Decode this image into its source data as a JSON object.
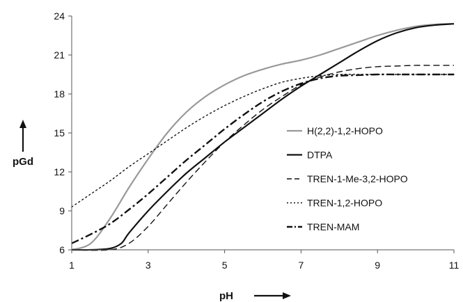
{
  "chart_data": {
    "type": "line",
    "title": "",
    "xlabel": "pH",
    "ylabel": "pGd",
    "xlim": [
      1,
      11
    ],
    "ylim": [
      6,
      24
    ],
    "xticks": [
      1,
      3,
      5,
      7,
      9,
      11
    ],
    "yticks": [
      6,
      9,
      12,
      15,
      18,
      21,
      24
    ],
    "legend_position": "right",
    "grid": false,
    "series": [
      {
        "name": "H(2,2)-1,2-HOPO",
        "color": "#999999",
        "style": "solid",
        "x": [
          1,
          1.5,
          2,
          2.5,
          3,
          3.5,
          4,
          4.5,
          5,
          5.5,
          6,
          6.5,
          7,
          7.5,
          8,
          8.5,
          9,
          9.5,
          10,
          10.5,
          11
        ],
        "y": [
          6.0,
          6.5,
          8.4,
          10.8,
          13.0,
          15.0,
          16.6,
          17.8,
          18.7,
          19.4,
          19.9,
          20.3,
          20.6,
          21.0,
          21.5,
          22.0,
          22.5,
          22.9,
          23.2,
          23.35,
          23.4
        ]
      },
      {
        "name": "DTPA",
        "color": "#111111",
        "style": "solid",
        "x": [
          1,
          1.5,
          2,
          2.3,
          2.5,
          3,
          3.5,
          4,
          4.5,
          5,
          5.5,
          6,
          6.5,
          7,
          7.5,
          8,
          8.5,
          9,
          9.5,
          10,
          10.5,
          11
        ],
        "y": [
          6.0,
          6.0,
          6.1,
          6.5,
          7.3,
          9.0,
          10.5,
          11.9,
          13.1,
          14.3,
          15.4,
          16.5,
          17.6,
          18.6,
          19.5,
          20.4,
          21.3,
          22.1,
          22.7,
          23.1,
          23.3,
          23.4
        ]
      },
      {
        "name": "TREN-1-Me-3,2-HOPO",
        "color": "#111111",
        "style": "dashed",
        "x": [
          1,
          2,
          2.5,
          3,
          3.5,
          4,
          4.5,
          5,
          5.5,
          6,
          6.5,
          7,
          7.5,
          8,
          8.5,
          9,
          9.5,
          10,
          10.5,
          11
        ],
        "y": [
          6.0,
          6.0,
          6.5,
          7.8,
          9.5,
          11.2,
          12.8,
          14.3,
          15.6,
          16.8,
          17.8,
          18.7,
          19.3,
          19.7,
          19.95,
          20.1,
          20.15,
          20.2,
          20.2,
          20.2
        ]
      },
      {
        "name": "TREN-1,2-HOPO",
        "color": "#111111",
        "style": "dotted",
        "x": [
          1,
          1.5,
          2,
          2.5,
          3,
          3.5,
          4,
          4.5,
          5,
          5.5,
          6,
          6.5,
          7,
          7.5,
          8,
          8.5,
          9,
          9.5,
          10,
          10.5,
          11
        ],
        "y": [
          9.3,
          10.3,
          11.3,
          12.4,
          13.4,
          14.4,
          15.4,
          16.3,
          17.1,
          17.8,
          18.4,
          18.9,
          19.2,
          19.4,
          19.5,
          19.5,
          19.5,
          19.5,
          19.5,
          19.5,
          19.5
        ]
      },
      {
        "name": "TREN-MAM",
        "color": "#111111",
        "style": "dashdot",
        "x": [
          1,
          1.5,
          2,
          2.5,
          3,
          3.5,
          4,
          4.5,
          5,
          5.5,
          6,
          6.5,
          7,
          7.5,
          8,
          8.5,
          9,
          9.5,
          10,
          10.5,
          11
        ],
        "y": [
          6.5,
          7.2,
          8.0,
          9.1,
          10.3,
          11.6,
          12.9,
          14.1,
          15.3,
          16.4,
          17.4,
          18.2,
          18.8,
          19.2,
          19.4,
          19.45,
          19.5,
          19.5,
          19.5,
          19.5,
          19.5
        ]
      }
    ]
  }
}
